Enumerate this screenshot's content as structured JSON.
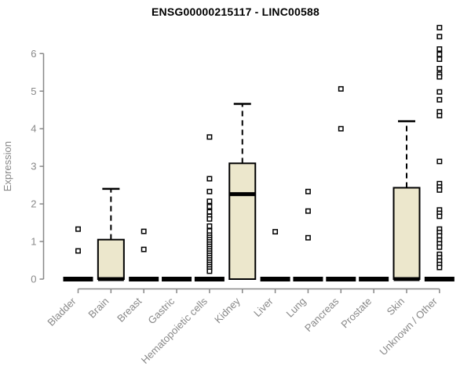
{
  "chart_data": {
    "type": "boxplot",
    "title": "ENSG00000215117 - LINC00588",
    "ylabel": "Expression",
    "xlabel": "",
    "ylim": [
      0,
      6.7
    ],
    "yticks": [
      0,
      1,
      2,
      3,
      4,
      5,
      6
    ],
    "grid": false,
    "legend": "none",
    "colors": {
      "box_fill": "#ECE7CC",
      "box_stroke": "#000000",
      "axis": "#888888",
      "tick_label": "#888888",
      "title": "#000000",
      "outlier_fill": "#ffffff",
      "outlier_stroke": "#000000",
      "background": "#ffffff"
    },
    "categories": [
      "Bladder",
      "Brain",
      "Breast",
      "Gastric",
      "Hematopoietic cells",
      "Kidney",
      "Liver",
      "Lung",
      "Pancreas",
      "Prostate",
      "Skin",
      "Unknown / Other"
    ],
    "series": [
      {
        "category": "Bladder",
        "q1": 0,
        "median": 0,
        "q3": 0,
        "whisker_low": 0,
        "whisker_high": 0,
        "outliers": [
          1.33,
          0.75
        ]
      },
      {
        "category": "Brain",
        "q1": 0,
        "median": 0,
        "q3": 1.05,
        "whisker_low": 0,
        "whisker_high": 2.4,
        "outliers": []
      },
      {
        "category": "Breast",
        "q1": 0,
        "median": 0,
        "q3": 0,
        "whisker_low": 0,
        "whisker_high": 0,
        "outliers": [
          1.27,
          0.79
        ]
      },
      {
        "category": "Gastric",
        "q1": 0,
        "median": 0,
        "q3": 0,
        "whisker_low": 0,
        "whisker_high": 0,
        "outliers": []
      },
      {
        "category": "Hematopoietic cells",
        "q1": 0,
        "median": 0,
        "q3": 0,
        "whisker_low": 0,
        "whisker_high": 0,
        "outliers": [
          3.78,
          2.67,
          2.33,
          2.07,
          1.93,
          1.79,
          1.67,
          1.6,
          1.41,
          1.28,
          1.17,
          1.11,
          1.05,
          0.99,
          0.93,
          0.87,
          0.81,
          0.75,
          0.69,
          0.63,
          0.57,
          0.51,
          0.45,
          0.39,
          0.33,
          0.27,
          0.21
        ]
      },
      {
        "category": "Kidney",
        "q1": 0,
        "median": 2.26,
        "q3": 3.08,
        "whisker_low": 0,
        "whisker_high": 4.66,
        "outliers": []
      },
      {
        "category": "Liver",
        "q1": 0,
        "median": 0,
        "q3": 0,
        "whisker_low": 0,
        "whisker_high": 0,
        "outliers": [
          1.26
        ]
      },
      {
        "category": "Lung",
        "q1": 0,
        "median": 0,
        "q3": 0,
        "whisker_low": 0,
        "whisker_high": 0,
        "outliers": [
          2.33,
          1.81,
          1.1
        ]
      },
      {
        "category": "Pancreas",
        "q1": 0,
        "median": 0,
        "q3": 0,
        "whisker_low": 0,
        "whisker_high": 0,
        "outliers": [
          5.06,
          4.0
        ]
      },
      {
        "category": "Prostate",
        "q1": 0,
        "median": 0,
        "q3": 0,
        "whisker_low": 0,
        "whisker_high": 0,
        "outliers": []
      },
      {
        "category": "Skin",
        "q1": 0,
        "median": 0,
        "q3": 2.43,
        "whisker_low": 0,
        "whisker_high": 4.2,
        "outliers": []
      },
      {
        "category": "Unknown / Other",
        "q1": 0,
        "median": 0,
        "q3": 0,
        "whisker_low": 0,
        "whisker_high": 0,
        "outliers": [
          6.69,
          6.45,
          6.12,
          5.98,
          5.85,
          5.6,
          5.45,
          5.38,
          4.98,
          4.77,
          4.45,
          4.35,
          3.13,
          2.54,
          2.45,
          2.37,
          1.84,
          1.75,
          1.67,
          1.33,
          1.24,
          1.15,
          1.04,
          0.94,
          0.85,
          0.66,
          0.57,
          0.48,
          0.39,
          0.31
        ]
      }
    ]
  }
}
